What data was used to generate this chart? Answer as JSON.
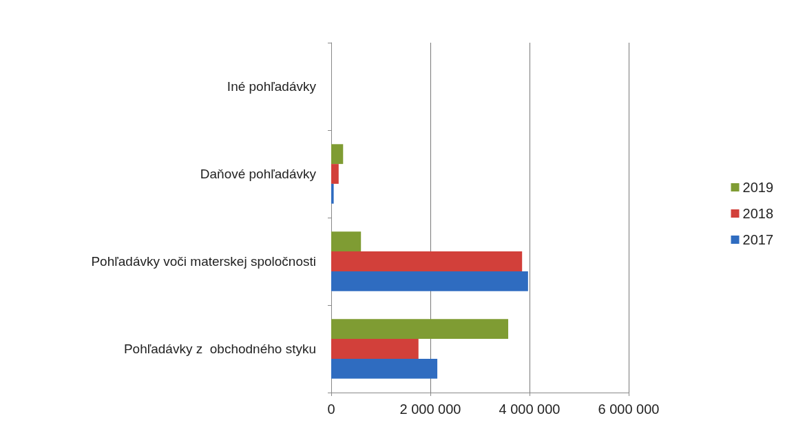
{
  "chart_data": {
    "type": "bar",
    "orientation": "horizontal",
    "categories": [
      "Iné pohľadávky",
      "Daňové pohľadávky",
      "Pohľadávky voči materskej spoločnosti",
      "Pohľadávky z  obchodného styku"
    ],
    "series": [
      {
        "name": "2019",
        "color": "#7f9c33",
        "values": [
          0,
          240000,
          600000,
          3570000
        ]
      },
      {
        "name": "2018",
        "color": "#d2403a",
        "values": [
          0,
          150000,
          3850000,
          1760000
        ]
      },
      {
        "name": "2017",
        "color": "#2f6cc0",
        "values": [
          0,
          50000,
          3970000,
          2140000
        ]
      }
    ],
    "xlim": [
      0,
      6000000
    ],
    "xticks": [
      0,
      {
        "value": 2000000,
        "label": "2 000 000"
      },
      {
        "value": 4000000,
        "label": "4 000 000"
      },
      {
        "value": 6000000,
        "label": "6 000 000"
      }
    ],
    "grid": "x",
    "legend": "right"
  }
}
